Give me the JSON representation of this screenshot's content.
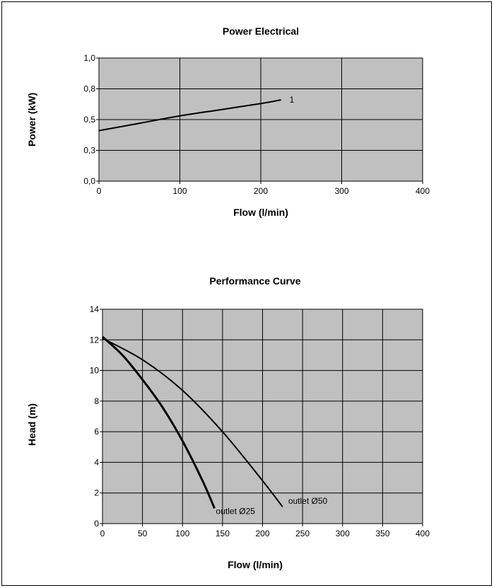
{
  "chart_data": [
    {
      "type": "line",
      "title": "Power Electrical",
      "xlabel": "Flow (l/min)",
      "ylabel": "Power (kW)",
      "xlim": [
        0,
        400
      ],
      "ylim": [
        0,
        1.0
      ],
      "x_ticks": [
        0,
        100,
        200,
        300,
        400
      ],
      "x_tick_labels": [
        "0",
        "100",
        "200",
        "300",
        "400"
      ],
      "y_ticks": [
        0,
        0.25,
        0.5,
        0.75,
        1.0
      ],
      "y_tick_labels": [
        "0,0",
        "0,3",
        "0,5",
        "0,8",
        "1,0"
      ],
      "grid": true,
      "plot_background": "#c0c0c0",
      "series": [
        {
          "name": "1",
          "color": "#000000",
          "x": [
            0,
            50,
            100,
            150,
            200,
            225
          ],
          "y": [
            0.41,
            0.47,
            0.53,
            0.58,
            0.63,
            0.66
          ]
        }
      ]
    },
    {
      "type": "line",
      "title": "Performance Curve",
      "xlabel": "Flow (l/min)",
      "ylabel": "Head (m)",
      "xlim": [
        0,
        400
      ],
      "ylim": [
        0,
        14
      ],
      "x_ticks": [
        0,
        50,
        100,
        150,
        200,
        250,
        300,
        350,
        400
      ],
      "x_tick_labels": [
        "0",
        "50",
        "100",
        "150",
        "200",
        "250",
        "300",
        "350",
        "400"
      ],
      "y_ticks": [
        0,
        2,
        4,
        6,
        8,
        10,
        12,
        14
      ],
      "y_tick_labels": [
        "0",
        "2",
        "4",
        "6",
        "8",
        "10",
        "12",
        "14"
      ],
      "grid": true,
      "plot_background": "#c0c0c0",
      "series": [
        {
          "name": "outlet Ø25",
          "color": "#000000",
          "x": [
            0,
            25,
            50,
            75,
            100,
            125,
            140
          ],
          "y": [
            12.2,
            11.0,
            9.4,
            7.6,
            5.4,
            2.8,
            1.0
          ]
        },
        {
          "name": "outlet Ø50",
          "color": "#000000",
          "x": [
            0,
            50,
            100,
            150,
            200,
            225
          ],
          "y": [
            12.1,
            10.7,
            8.7,
            6.0,
            2.8,
            1.1
          ]
        }
      ]
    }
  ]
}
